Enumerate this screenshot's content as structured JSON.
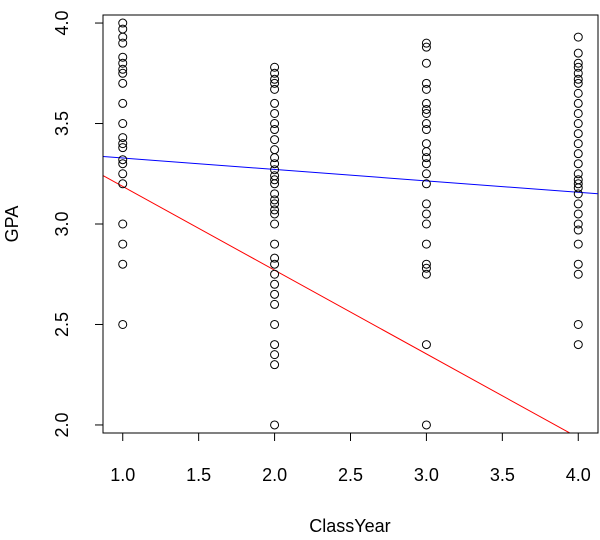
{
  "chart_data": {
    "type": "scatter",
    "title": "",
    "xlabel": "ClassYear",
    "ylabel": "GPA",
    "xlim": [
      0.87,
      4.13
    ],
    "ylim": [
      1.96,
      4.04
    ],
    "grid": false,
    "xticks": [
      1.0,
      1.5,
      2.0,
      2.5,
      3.0,
      3.5,
      4.0
    ],
    "xtick_labels": [
      "1.0",
      "1.5",
      "2.0",
      "2.5",
      "3.0",
      "3.5",
      "4.0"
    ],
    "yticks": [
      2.0,
      2.5,
      3.0,
      3.5,
      4.0
    ],
    "ytick_labels": [
      "2.0",
      "2.5",
      "3.0",
      "3.5",
      "4.0"
    ],
    "points": [
      {
        "x": 1,
        "y": 4.0
      },
      {
        "x": 1,
        "y": 3.97
      },
      {
        "x": 1,
        "y": 3.93
      },
      {
        "x": 1,
        "y": 3.9
      },
      {
        "x": 1,
        "y": 3.83
      },
      {
        "x": 1,
        "y": 3.8
      },
      {
        "x": 1,
        "y": 3.77
      },
      {
        "x": 1,
        "y": 3.75
      },
      {
        "x": 1,
        "y": 3.7
      },
      {
        "x": 1,
        "y": 3.6
      },
      {
        "x": 1,
        "y": 3.5
      },
      {
        "x": 1,
        "y": 3.43
      },
      {
        "x": 1,
        "y": 3.4
      },
      {
        "x": 1,
        "y": 3.38
      },
      {
        "x": 1,
        "y": 3.32
      },
      {
        "x": 1,
        "y": 3.3
      },
      {
        "x": 1,
        "y": 3.25
      },
      {
        "x": 1,
        "y": 3.2
      },
      {
        "x": 1,
        "y": 3.0
      },
      {
        "x": 1,
        "y": 2.9
      },
      {
        "x": 1,
        "y": 2.8
      },
      {
        "x": 1,
        "y": 2.5
      },
      {
        "x": 2,
        "y": 3.78
      },
      {
        "x": 2,
        "y": 3.75
      },
      {
        "x": 2,
        "y": 3.72
      },
      {
        "x": 2,
        "y": 3.7
      },
      {
        "x": 2,
        "y": 3.67
      },
      {
        "x": 2,
        "y": 3.6
      },
      {
        "x": 2,
        "y": 3.55
      },
      {
        "x": 2,
        "y": 3.5
      },
      {
        "x": 2,
        "y": 3.47
      },
      {
        "x": 2,
        "y": 3.42
      },
      {
        "x": 2,
        "y": 3.37
      },
      {
        "x": 2,
        "y": 3.33
      },
      {
        "x": 2,
        "y": 3.3
      },
      {
        "x": 2,
        "y": 3.27
      },
      {
        "x": 2,
        "y": 3.24
      },
      {
        "x": 2,
        "y": 3.22
      },
      {
        "x": 2,
        "y": 3.2
      },
      {
        "x": 2,
        "y": 3.15
      },
      {
        "x": 2,
        "y": 3.12
      },
      {
        "x": 2,
        "y": 3.1
      },
      {
        "x": 2,
        "y": 3.07
      },
      {
        "x": 2,
        "y": 3.05
      },
      {
        "x": 2,
        "y": 3.0
      },
      {
        "x": 2,
        "y": 2.9
      },
      {
        "x": 2,
        "y": 2.83
      },
      {
        "x": 2,
        "y": 2.8
      },
      {
        "x": 2,
        "y": 2.75
      },
      {
        "x": 2,
        "y": 2.7
      },
      {
        "x": 2,
        "y": 2.65
      },
      {
        "x": 2,
        "y": 2.6
      },
      {
        "x": 2,
        "y": 2.5
      },
      {
        "x": 2,
        "y": 2.4
      },
      {
        "x": 2,
        "y": 2.35
      },
      {
        "x": 2,
        "y": 2.3
      },
      {
        "x": 2,
        "y": 2.0
      },
      {
        "x": 3,
        "y": 3.9
      },
      {
        "x": 3,
        "y": 3.88
      },
      {
        "x": 3,
        "y": 3.8
      },
      {
        "x": 3,
        "y": 3.7
      },
      {
        "x": 3,
        "y": 3.67
      },
      {
        "x": 3,
        "y": 3.6
      },
      {
        "x": 3,
        "y": 3.57
      },
      {
        "x": 3,
        "y": 3.55
      },
      {
        "x": 3,
        "y": 3.5
      },
      {
        "x": 3,
        "y": 3.47
      },
      {
        "x": 3,
        "y": 3.4
      },
      {
        "x": 3,
        "y": 3.36
      },
      {
        "x": 3,
        "y": 3.33
      },
      {
        "x": 3,
        "y": 3.3
      },
      {
        "x": 3,
        "y": 3.25
      },
      {
        "x": 3,
        "y": 3.2
      },
      {
        "x": 3,
        "y": 3.1
      },
      {
        "x": 3,
        "y": 3.05
      },
      {
        "x": 3,
        "y": 3.0
      },
      {
        "x": 3,
        "y": 2.9
      },
      {
        "x": 3,
        "y": 2.8
      },
      {
        "x": 3,
        "y": 2.78
      },
      {
        "x": 3,
        "y": 2.75
      },
      {
        "x": 3,
        "y": 2.4
      },
      {
        "x": 3,
        "y": 2.0
      },
      {
        "x": 4,
        "y": 3.93
      },
      {
        "x": 4,
        "y": 3.85
      },
      {
        "x": 4,
        "y": 3.8
      },
      {
        "x": 4,
        "y": 3.78
      },
      {
        "x": 4,
        "y": 3.75
      },
      {
        "x": 4,
        "y": 3.72
      },
      {
        "x": 4,
        "y": 3.7
      },
      {
        "x": 4,
        "y": 3.65
      },
      {
        "x": 4,
        "y": 3.6
      },
      {
        "x": 4,
        "y": 3.55
      },
      {
        "x": 4,
        "y": 3.5
      },
      {
        "x": 4,
        "y": 3.45
      },
      {
        "x": 4,
        "y": 3.4
      },
      {
        "x": 4,
        "y": 3.35
      },
      {
        "x": 4,
        "y": 3.3
      },
      {
        "x": 4,
        "y": 3.25
      },
      {
        "x": 4,
        "y": 3.22
      },
      {
        "x": 4,
        "y": 3.2
      },
      {
        "x": 4,
        "y": 3.18
      },
      {
        "x": 4,
        "y": 3.15
      },
      {
        "x": 4,
        "y": 3.1
      },
      {
        "x": 4,
        "y": 3.05
      },
      {
        "x": 4,
        "y": 3.0
      },
      {
        "x": 4,
        "y": 2.97
      },
      {
        "x": 4,
        "y": 2.9
      },
      {
        "x": 4,
        "y": 2.8
      },
      {
        "x": 4,
        "y": 2.75
      },
      {
        "x": 4,
        "y": 2.5
      },
      {
        "x": 4,
        "y": 2.4
      }
    ],
    "lines": [
      {
        "color": "#0000ff",
        "intercept": 3.3853,
        "slope": -0.0569
      },
      {
        "color": "#ff0000",
        "intercept": 3.6036,
        "slope": -0.4167
      }
    ],
    "marker": {
      "shape": "open-circle",
      "color": "#000000"
    }
  }
}
